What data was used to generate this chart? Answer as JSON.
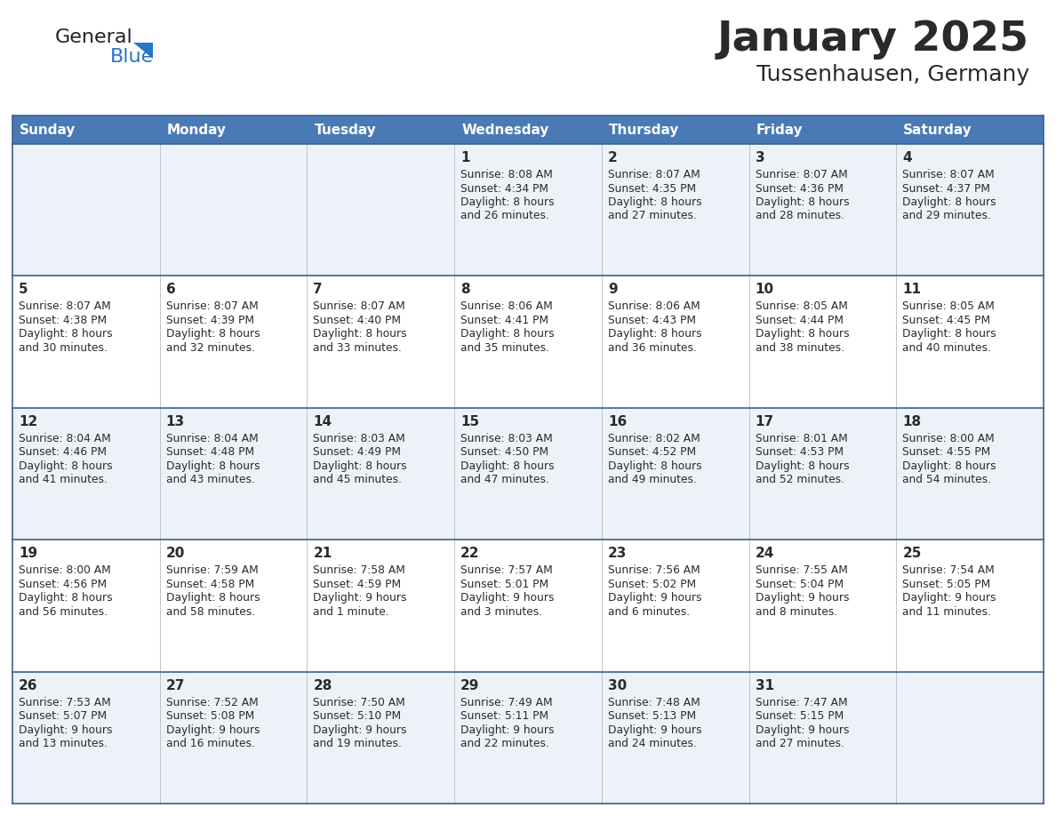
{
  "title": "January 2025",
  "subtitle": "Tussenhausen, Germany",
  "header_bg": "#4a7ab5",
  "header_text_color": "#ffffff",
  "day_names": [
    "Sunday",
    "Monday",
    "Tuesday",
    "Wednesday",
    "Thursday",
    "Friday",
    "Saturday"
  ],
  "row_bg_odd": "#edf2f8",
  "row_bg_even": "#ffffff",
  "cell_border_color": "#3a6090",
  "date_color": "#2a2a2a",
  "info_color": "#2a2a2a",
  "logo_general_color": "#222222",
  "logo_blue_color": "#2577c8",
  "calendar_data": [
    [
      null,
      null,
      null,
      {
        "day": 1,
        "sunrise": "8:08 AM",
        "sunset": "4:34 PM",
        "daylight": "8 hours",
        "daylight2": "and 26 minutes."
      },
      {
        "day": 2,
        "sunrise": "8:07 AM",
        "sunset": "4:35 PM",
        "daylight": "8 hours",
        "daylight2": "and 27 minutes."
      },
      {
        "day": 3,
        "sunrise": "8:07 AM",
        "sunset": "4:36 PM",
        "daylight": "8 hours",
        "daylight2": "and 28 minutes."
      },
      {
        "day": 4,
        "sunrise": "8:07 AM",
        "sunset": "4:37 PM",
        "daylight": "8 hours",
        "daylight2": "and 29 minutes."
      }
    ],
    [
      {
        "day": 5,
        "sunrise": "8:07 AM",
        "sunset": "4:38 PM",
        "daylight": "8 hours",
        "daylight2": "and 30 minutes."
      },
      {
        "day": 6,
        "sunrise": "8:07 AM",
        "sunset": "4:39 PM",
        "daylight": "8 hours",
        "daylight2": "and 32 minutes."
      },
      {
        "day": 7,
        "sunrise": "8:07 AM",
        "sunset": "4:40 PM",
        "daylight": "8 hours",
        "daylight2": "and 33 minutes."
      },
      {
        "day": 8,
        "sunrise": "8:06 AM",
        "sunset": "4:41 PM",
        "daylight": "8 hours",
        "daylight2": "and 35 minutes."
      },
      {
        "day": 9,
        "sunrise": "8:06 AM",
        "sunset": "4:43 PM",
        "daylight": "8 hours",
        "daylight2": "and 36 minutes."
      },
      {
        "day": 10,
        "sunrise": "8:05 AM",
        "sunset": "4:44 PM",
        "daylight": "8 hours",
        "daylight2": "and 38 minutes."
      },
      {
        "day": 11,
        "sunrise": "8:05 AM",
        "sunset": "4:45 PM",
        "daylight": "8 hours",
        "daylight2": "and 40 minutes."
      }
    ],
    [
      {
        "day": 12,
        "sunrise": "8:04 AM",
        "sunset": "4:46 PM",
        "daylight": "8 hours",
        "daylight2": "and 41 minutes."
      },
      {
        "day": 13,
        "sunrise": "8:04 AM",
        "sunset": "4:48 PM",
        "daylight": "8 hours",
        "daylight2": "and 43 minutes."
      },
      {
        "day": 14,
        "sunrise": "8:03 AM",
        "sunset": "4:49 PM",
        "daylight": "8 hours",
        "daylight2": "and 45 minutes."
      },
      {
        "day": 15,
        "sunrise": "8:03 AM",
        "sunset": "4:50 PM",
        "daylight": "8 hours",
        "daylight2": "and 47 minutes."
      },
      {
        "day": 16,
        "sunrise": "8:02 AM",
        "sunset": "4:52 PM",
        "daylight": "8 hours",
        "daylight2": "and 49 minutes."
      },
      {
        "day": 17,
        "sunrise": "8:01 AM",
        "sunset": "4:53 PM",
        "daylight": "8 hours",
        "daylight2": "and 52 minutes."
      },
      {
        "day": 18,
        "sunrise": "8:00 AM",
        "sunset": "4:55 PM",
        "daylight": "8 hours",
        "daylight2": "and 54 minutes."
      }
    ],
    [
      {
        "day": 19,
        "sunrise": "8:00 AM",
        "sunset": "4:56 PM",
        "daylight": "8 hours",
        "daylight2": "and 56 minutes."
      },
      {
        "day": 20,
        "sunrise": "7:59 AM",
        "sunset": "4:58 PM",
        "daylight": "8 hours",
        "daylight2": "and 58 minutes."
      },
      {
        "day": 21,
        "sunrise": "7:58 AM",
        "sunset": "4:59 PM",
        "daylight": "9 hours",
        "daylight2": "and 1 minute."
      },
      {
        "day": 22,
        "sunrise": "7:57 AM",
        "sunset": "5:01 PM",
        "daylight": "9 hours",
        "daylight2": "and 3 minutes."
      },
      {
        "day": 23,
        "sunrise": "7:56 AM",
        "sunset": "5:02 PM",
        "daylight": "9 hours",
        "daylight2": "and 6 minutes."
      },
      {
        "day": 24,
        "sunrise": "7:55 AM",
        "sunset": "5:04 PM",
        "daylight": "9 hours",
        "daylight2": "and 8 minutes."
      },
      {
        "day": 25,
        "sunrise": "7:54 AM",
        "sunset": "5:05 PM",
        "daylight": "9 hours",
        "daylight2": "and 11 minutes."
      }
    ],
    [
      {
        "day": 26,
        "sunrise": "7:53 AM",
        "sunset": "5:07 PM",
        "daylight": "9 hours",
        "daylight2": "and 13 minutes."
      },
      {
        "day": 27,
        "sunrise": "7:52 AM",
        "sunset": "5:08 PM",
        "daylight": "9 hours",
        "daylight2": "and 16 minutes."
      },
      {
        "day": 28,
        "sunrise": "7:50 AM",
        "sunset": "5:10 PM",
        "daylight": "9 hours",
        "daylight2": "and 19 minutes."
      },
      {
        "day": 29,
        "sunrise": "7:49 AM",
        "sunset": "5:11 PM",
        "daylight": "9 hours",
        "daylight2": "and 22 minutes."
      },
      {
        "day": 30,
        "sunrise": "7:48 AM",
        "sunset": "5:13 PM",
        "daylight": "9 hours",
        "daylight2": "and 24 minutes."
      },
      {
        "day": 31,
        "sunrise": "7:47 AM",
        "sunset": "5:15 PM",
        "daylight": "9 hours",
        "daylight2": "and 27 minutes."
      },
      null
    ]
  ]
}
